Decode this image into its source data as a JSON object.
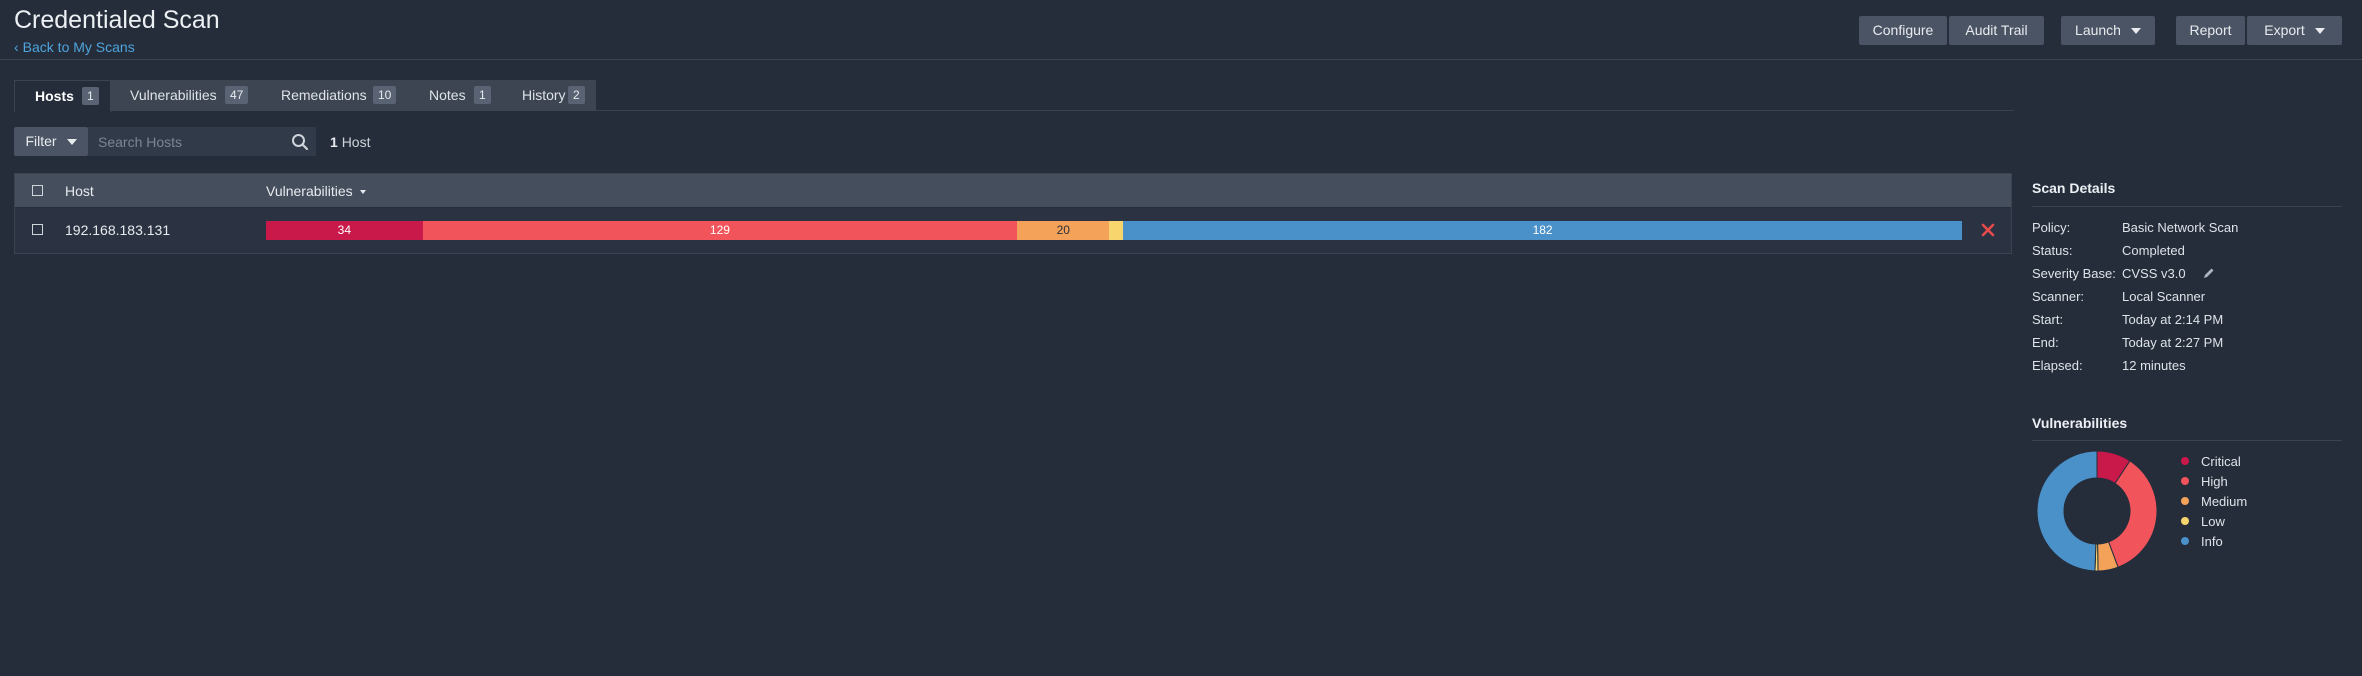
{
  "header": {
    "title": "Credentialed Scan",
    "back_chevron": "‹",
    "back_label": "Back to My Scans",
    "buttons": {
      "configure": "Configure",
      "audit_trail": "Audit Trail",
      "launch": "Launch",
      "report": "Report",
      "export": "Export"
    }
  },
  "tabs": [
    {
      "label": "Hosts",
      "count": "1",
      "active": true
    },
    {
      "label": "Vulnerabilities",
      "count": "47"
    },
    {
      "label": "Remediations",
      "count": "10"
    },
    {
      "label": "Notes",
      "count": "1"
    },
    {
      "label": "History",
      "count": "2"
    }
  ],
  "toolbar": {
    "filter_label": "Filter",
    "search_placeholder": "Search Hosts",
    "host_count_num": "1",
    "host_count_label": "Host"
  },
  "table": {
    "columns": {
      "host": "Host",
      "vulnerabilities": "Vulnerabilities"
    },
    "rows": [
      {
        "host": "192.168.183.131",
        "segments": [
          {
            "severity": "critical",
            "value": 34,
            "label": "34"
          },
          {
            "severity": "high",
            "value": 129,
            "label": "129"
          },
          {
            "severity": "medium",
            "value": 20,
            "label": "20"
          },
          {
            "severity": "low",
            "value": 3,
            "label": ""
          },
          {
            "severity": "info",
            "value": 182,
            "label": "182"
          }
        ]
      }
    ]
  },
  "scan_details": {
    "title": "Scan Details",
    "rows": [
      {
        "key": "Policy:",
        "value": "Basic Network Scan"
      },
      {
        "key": "Status:",
        "value": "Completed"
      },
      {
        "key": "Severity Base:",
        "value": "CVSS v3.0"
      },
      {
        "key": "Scanner:",
        "value": "Local Scanner"
      },
      {
        "key": "Start:",
        "value": "Today at 2:14 PM"
      },
      {
        "key": "End:",
        "value": "Today at 2:27 PM"
      },
      {
        "key": "Elapsed:",
        "value": "12 minutes"
      }
    ]
  },
  "vulnerabilities_chart": {
    "title": "Vulnerabilities",
    "legend": [
      "Critical",
      "High",
      "Medium",
      "Low",
      "Info"
    ]
  },
  "chart_data": {
    "type": "pie",
    "categories": [
      "Critical",
      "High",
      "Medium",
      "Low",
      "Info"
    ],
    "values": [
      34,
      129,
      20,
      3,
      182
    ],
    "title": "Vulnerabilities"
  },
  "colors": {
    "critical": "#c9184a",
    "high": "#f2545b",
    "medium": "#f4a259",
    "low": "#f9d56e",
    "info": "#4a90c9",
    "link": "#4ea4dc",
    "delete": "#e84a4a"
  }
}
